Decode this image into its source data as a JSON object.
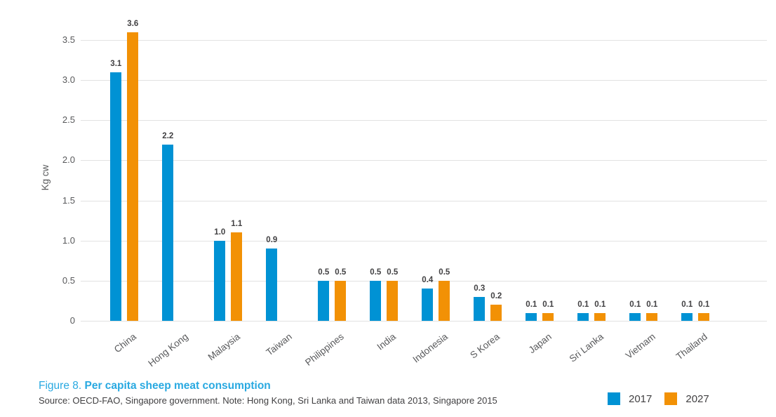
{
  "figure": {
    "caption_prefix": "Figure 8.",
    "caption_title": "Per capita sheep meat consumption",
    "source_note": "Source: OECD-FAO, Singapore government. Note: Hong Kong, Sri Lanka and Taiwan data 2013, Singapore 2015"
  },
  "chart_data": {
    "type": "bar",
    "title": "Figure 8. Per capita sheep meat consumption",
    "xlabel": "",
    "ylabel": "Kg cw",
    "ylim": [
      0,
      3.5
    ],
    "grid": true,
    "legend_position": "bottom-right",
    "yticks": [
      0,
      0.5,
      1.0,
      1.5,
      2.0,
      2.5,
      3.0,
      3.5
    ],
    "ytick_labels": [
      "0",
      "0.5",
      "1.0",
      "1.5",
      "2.0",
      "2.5",
      "3.0",
      "3.5"
    ],
    "categories": [
      "China",
      "Hong Kong",
      "Malaysia",
      "Taiwan",
      "Philippines",
      "India",
      "Indonesia",
      "S Korea",
      "Japan",
      "Sri Lanka",
      "Vietnam",
      "Thailand"
    ],
    "series": [
      {
        "name": "2017",
        "color": "#0092d4",
        "values": [
          3.1,
          2.2,
          1.0,
          0.9,
          0.5,
          0.5,
          0.4,
          0.3,
          0.1,
          0.1,
          0.1,
          0.1
        ]
      },
      {
        "name": "2027",
        "color": "#f29105",
        "values": [
          3.6,
          null,
          1.1,
          null,
          0.5,
          0.5,
          0.5,
          0.2,
          0.1,
          0.1,
          0.1,
          0.1
        ]
      }
    ]
  },
  "colors": {
    "series_2017_blue": "#0092d4",
    "series_2027_orange": "#f29105",
    "caption_blue": "#29a9e1",
    "dark_text": "#414042",
    "axis_text": "#58595b",
    "gridline": "#e2e2e2"
  }
}
